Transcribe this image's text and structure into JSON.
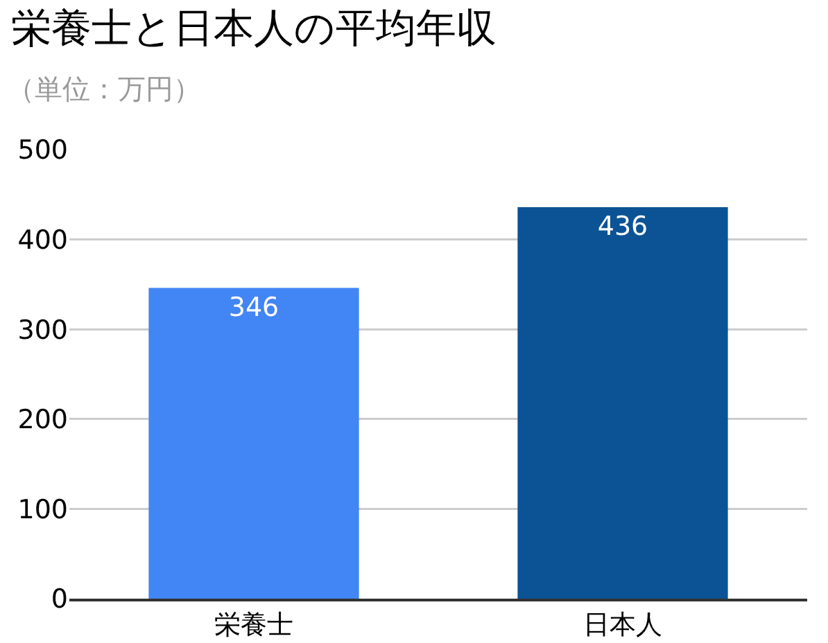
{
  "chart_data": {
    "type": "bar",
    "title": "栄養士と日本人の平均年収",
    "subtitle": "（単位：万円）",
    "categories": [
      "栄養士",
      "日本人"
    ],
    "values": [
      346,
      436
    ],
    "colors": [
      "#4285f4",
      "#0b5394"
    ],
    "ylim": [
      0,
      500
    ],
    "yticks": [
      0,
      100,
      200,
      300,
      400,
      500
    ],
    "grid": "y",
    "data_labels": true
  }
}
